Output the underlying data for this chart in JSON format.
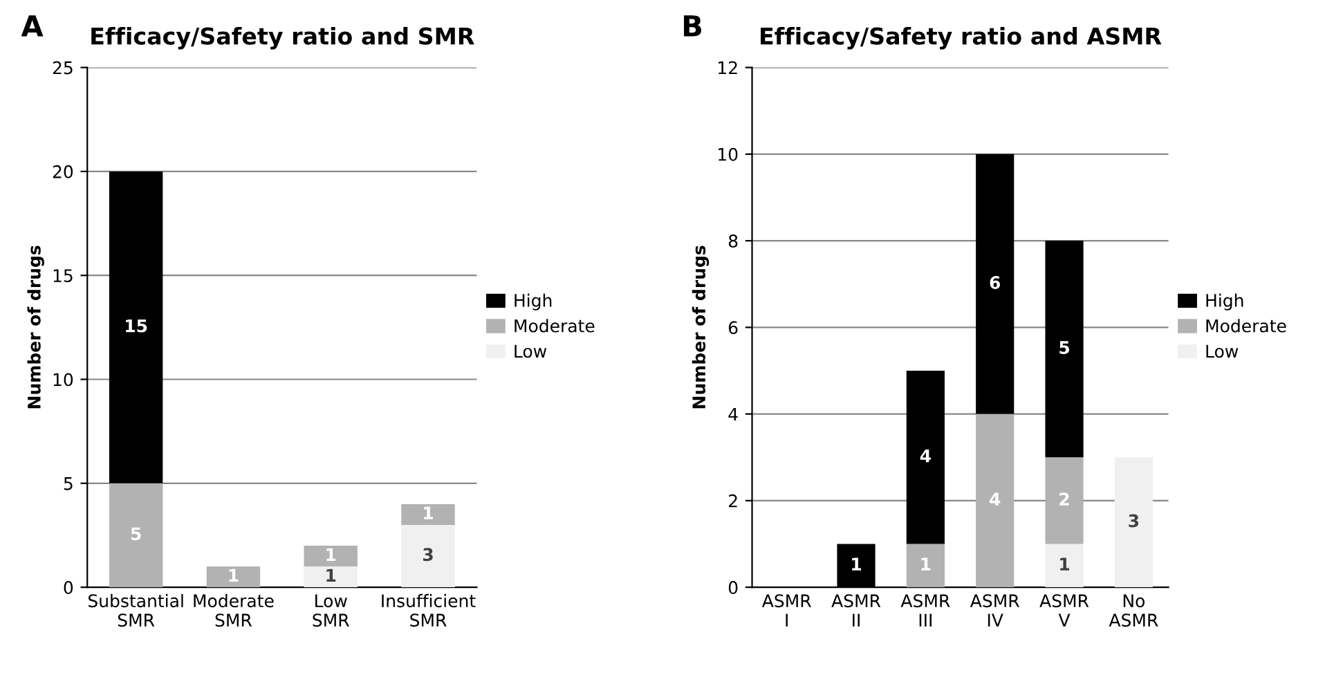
{
  "chart_data": [
    {
      "type": "bar",
      "stacked": true,
      "title": "Efficacy/Safety ratio and SMR",
      "ylabel": "Number of drugs",
      "annotations": [
        "A"
      ],
      "categories": [
        "Substantial SMR",
        "Moderate SMR",
        "Low SMR",
        "Insufficient SMR"
      ],
      "series": [
        {
          "name": "Low",
          "color": "#f0f0f0",
          "values": [
            0,
            0,
            1,
            3
          ],
          "value_labels": [
            null,
            null,
            "1",
            "3"
          ]
        },
        {
          "name": "Moderate",
          "color": "#b2b2b2",
          "values": [
            5,
            1,
            1,
            1
          ],
          "value_labels": [
            "5",
            "1",
            "1",
            "1"
          ]
        },
        {
          "name": "High",
          "color": "#000000",
          "values": [
            15,
            0,
            0,
            0
          ],
          "value_labels": [
            "15",
            null,
            null,
            null
          ]
        }
      ],
      "ylim": [
        0,
        25
      ],
      "yticks": [
        0,
        5,
        10,
        15,
        20,
        25
      ],
      "grid": "y",
      "legend": "right"
    },
    {
      "type": "bar",
      "stacked": true,
      "title": "Efficacy/Safety ratio and ASMR",
      "ylabel": "Number of drugs",
      "annotations": [
        "B"
      ],
      "categories": [
        "ASMR I",
        "ASMR II",
        "ASMR III",
        "ASMR IV",
        "ASMR V",
        "No ASMR"
      ],
      "series": [
        {
          "name": "Low",
          "color": "#f0f0f0",
          "values": [
            0,
            0,
            0,
            0,
            1,
            3
          ],
          "value_labels": [
            null,
            null,
            null,
            null,
            "1",
            "3"
          ]
        },
        {
          "name": "Moderate",
          "color": "#b2b2b2",
          "values": [
            0,
            0,
            1,
            4,
            2,
            0
          ],
          "value_labels": [
            null,
            null,
            "1",
            "4",
            "2",
            null
          ]
        },
        {
          "name": "High",
          "color": "#000000",
          "values": [
            0,
            1,
            4,
            6,
            5,
            0
          ],
          "value_labels": [
            null,
            "1",
            "4",
            "6",
            "5",
            null
          ]
        }
      ],
      "ylim": [
        0,
        12
      ],
      "yticks": [
        0,
        2,
        4,
        6,
        8,
        10,
        12
      ],
      "grid": "y",
      "legend": "right"
    }
  ]
}
